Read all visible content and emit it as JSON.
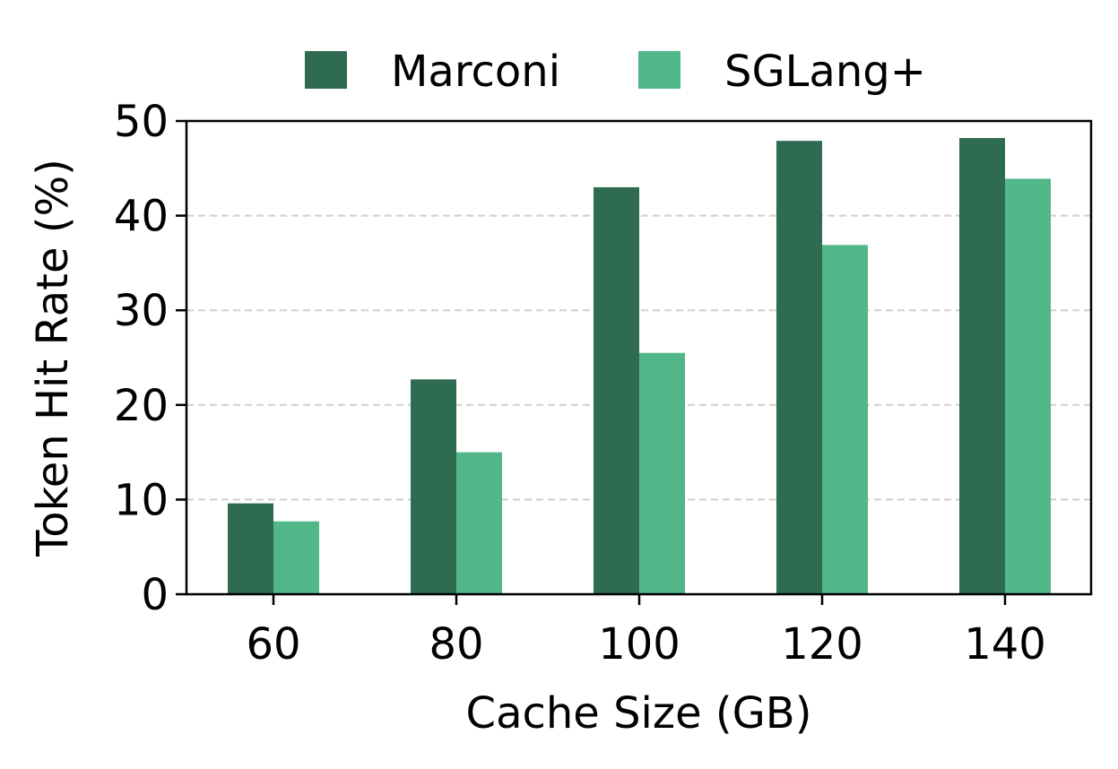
{
  "chart_data": {
    "type": "bar",
    "categories": [
      "60",
      "80",
      "100",
      "120",
      "140"
    ],
    "series": [
      {
        "name": "Marconi",
        "color": "#2e6b50",
        "values": [
          9.6,
          22.7,
          43.0,
          47.9,
          48.2
        ]
      },
      {
        "name": "SGLang+",
        "color": "#52b788",
        "values": [
          7.7,
          15.0,
          25.5,
          36.9,
          43.9
        ]
      }
    ],
    "title": "",
    "xlabel": "Cache Size (GB)",
    "ylabel": "Token Hit Rate (%)",
    "ylim": [
      0,
      50
    ],
    "yticks": [
      "0",
      "10",
      "20",
      "30",
      "40",
      "50"
    ],
    "grid": {
      "y": true,
      "style": "dashed"
    },
    "legend_position": "top-center"
  }
}
